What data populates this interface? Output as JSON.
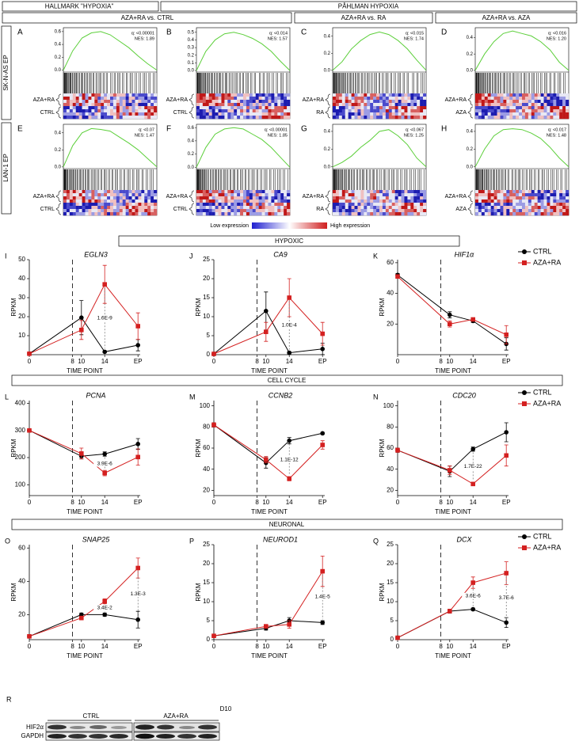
{
  "header": {
    "hallmark": "HALLMARK \"HYPOXIA\"",
    "pahlman": "PÅHLMAN HYPOXIA",
    "comparisons": [
      "AZA+RA vs. CTRL",
      "AZA+RA vs. RA",
      "AZA+RA vs. AZA"
    ],
    "rows": [
      "SK-N-AS EP",
      "LAN-1 EP"
    ]
  },
  "colorbar": {
    "low": "Low expression",
    "high": "High expression"
  },
  "sections": [
    "HYPOXIC",
    "CELL CYCLE",
    "NEURONAL"
  ],
  "chart_data": [
    {
      "type": "gsea",
      "label": "A",
      "ylim": [
        -0.03,
        0.66
      ],
      "yticks": [
        {
          "value": 0,
          "label": "0.0"
        },
        0.2,
        0.4,
        0.6
      ],
      "q": "q: <0.00001",
      "nes": "NES: 1.89",
      "groups": [
        "AZA+RA",
        "CTRL"
      ],
      "values": [
        0,
        0.3,
        0.5,
        0.58,
        0.6,
        0.55,
        0.45,
        0.35,
        0.22,
        0.1,
        0
      ]
    },
    {
      "type": "gsea",
      "label": "B",
      "ylim": [
        -0.02,
        0.56
      ],
      "yticks": [
        {
          "value": 0,
          "label": "0.0"
        },
        0.1,
        0.2,
        0.3,
        0.4,
        0.5
      ],
      "q": "q: <0.014",
      "nes": "NES: 1.57",
      "groups": [
        "AZA+RA",
        "CTRL"
      ],
      "values": [
        0,
        0.25,
        0.4,
        0.48,
        0.5,
        0.47,
        0.42,
        0.35,
        0.25,
        0.12,
        0
      ]
    },
    {
      "type": "gsea",
      "label": "C",
      "ylim": [
        -0.02,
        0.5
      ],
      "yticks": [
        {
          "value": 0,
          "label": "0.0"
        },
        0.2,
        0.4
      ],
      "q": "q: <0.015",
      "nes": "NES: 1.74",
      "groups": [
        "AZA+RA",
        "RA"
      ],
      "values": [
        0,
        0.1,
        0.25,
        0.35,
        0.42,
        0.45,
        0.42,
        0.35,
        0.25,
        0.12,
        0
      ]
    },
    {
      "type": "gsea",
      "label": "D",
      "ylim": [
        -0.02,
        0.52
      ],
      "yticks": [
        {
          "value": 0,
          "label": "0.0"
        },
        0.2,
        0.4
      ],
      "q": "q: <0.016",
      "nes": "NES: 1.20",
      "groups": [
        "AZA+RA",
        "AZA"
      ],
      "values": [
        0,
        0.2,
        0.35,
        0.45,
        0.48,
        0.45,
        0.42,
        0.35,
        0.25,
        0.1,
        0
      ]
    },
    {
      "type": "gsea",
      "label": "E",
      "ylim": [
        -0.02,
        0.5
      ],
      "yticks": [
        {
          "value": 0,
          "label": "0.0"
        },
        0.2,
        0.4
      ],
      "q": "q: <0.07",
      "nes": "NES: 1.47",
      "groups": [
        "AZA+RA",
        "CTRL"
      ],
      "values": [
        0,
        0.25,
        0.4,
        0.45,
        0.44,
        0.42,
        0.35,
        0.28,
        0.2,
        0.1,
        0
      ]
    },
    {
      "type": "gsea",
      "label": "F",
      "ylim": [
        -0.02,
        0.65
      ],
      "yticks": [
        {
          "value": 0,
          "label": "0.0"
        },
        0.2,
        0.4,
        0.6
      ],
      "q": "q: <0.00001",
      "nes": "NES: 1.85",
      "groups": [
        "AZA+RA",
        "CTRL"
      ],
      "values": [
        0,
        0.3,
        0.5,
        0.58,
        0.6,
        0.58,
        0.5,
        0.42,
        0.3,
        0.15,
        0
      ]
    },
    {
      "type": "gsea",
      "label": "G",
      "ylim": [
        -0.02,
        0.48
      ],
      "yticks": [
        {
          "value": 0,
          "label": "0.0"
        },
        0.2,
        0.4
      ],
      "q": "q: <0.067",
      "nes": "NES: 1.25",
      "groups": [
        "AZA+RA",
        "RA"
      ],
      "values": [
        0,
        0.05,
        0.12,
        0.22,
        0.3,
        0.4,
        0.42,
        0.35,
        0.25,
        0.1,
        0
      ]
    },
    {
      "type": "gsea",
      "label": "H",
      "ylim": [
        -0.02,
        0.48
      ],
      "yticks": [
        {
          "value": 0,
          "label": "0.0"
        },
        0.2,
        0.4
      ],
      "q": "q: <0.017",
      "nes": "NES: 1.48",
      "groups": [
        "AZA+RA",
        "AZA"
      ],
      "values": [
        0,
        0.2,
        0.35,
        0.42,
        0.43,
        0.42,
        0.38,
        0.32,
        0.22,
        0.1,
        0
      ]
    },
    {
      "type": "line",
      "label": "I",
      "title": "EGLN3",
      "y_label": "RPKM",
      "x_label": "TIME POINT",
      "x": [
        "0",
        "10",
        "14",
        "EP"
      ],
      "xticks": [
        "0",
        "8",
        "10",
        "14",
        "EP"
      ],
      "vline": "8",
      "ylim": [
        0,
        50
      ],
      "yticks": [
        10,
        20,
        30,
        40,
        50
      ],
      "series": [
        {
          "name": "CTRL",
          "color": "#000000",
          "marker": "circle",
          "values": [
            0.5,
            19.5,
            1.5,
            5
          ],
          "errors": [
            0,
            9,
            0.5,
            3
          ]
        },
        {
          "name": "AZA+RA",
          "color": "#d42020",
          "marker": "square",
          "values": [
            0.5,
            13,
            37,
            15
          ],
          "errors": [
            0,
            5,
            10,
            7
          ]
        }
      ],
      "annotations": [
        {
          "text": "1.6E-9",
          "at": "14"
        }
      ]
    },
    {
      "type": "line",
      "label": "J",
      "title": "CA9",
      "y_label": "RPKM",
      "x_label": "TIME POINT",
      "x": [
        "0",
        "10",
        "14",
        "EP"
      ],
      "xticks": [
        "0",
        "8",
        "10",
        "14",
        "EP"
      ],
      "vline": "8",
      "ylim": [
        0,
        25
      ],
      "yticks": [
        0,
        5,
        10,
        15,
        20,
        25
      ],
      "series": [
        {
          "name": "CTRL",
          "color": "#000000",
          "marker": "circle",
          "values": [
            0.2,
            11.5,
            0.5,
            1.5
          ],
          "errors": [
            0,
            5,
            0.3,
            1.5
          ]
        },
        {
          "name": "AZA+RA",
          "color": "#d42020",
          "marker": "square",
          "values": [
            0.2,
            6,
            15,
            5.5
          ],
          "errors": [
            0,
            2.5,
            5,
            3
          ]
        }
      ],
      "annotations": [
        {
          "text": "1.0E-4",
          "at": "14"
        }
      ]
    },
    {
      "type": "line",
      "label": "K",
      "title": "HIF1α",
      "y_label": "RPKM",
      "x_label": "TIME POINT",
      "x": [
        "0",
        "10",
        "14",
        "EP"
      ],
      "xticks": [
        "0",
        "8",
        "10",
        "14",
        "EP"
      ],
      "vline": "8",
      "ylim": [
        0,
        62
      ],
      "yticks": [
        20,
        40,
        60
      ],
      "legend": "right",
      "series": [
        {
          "name": "CTRL",
          "color": "#000000",
          "marker": "circle",
          "values": [
            52,
            26,
            22,
            7
          ],
          "errors": [
            1,
            2,
            1,
            4
          ]
        },
        {
          "name": "AZA+RA",
          "color": "#d42020",
          "marker": "square",
          "values": [
            51,
            20,
            23,
            13
          ],
          "errors": [
            1,
            2,
            1,
            6
          ]
        }
      ],
      "annotations": []
    },
    {
      "type": "line",
      "label": "L",
      "title": "PCNA",
      "y_label": "RPKM",
      "x_label": "TIME POINT",
      "x": [
        "0",
        "10",
        "14",
        "EP"
      ],
      "xticks": [
        "0",
        "8",
        "10",
        "14",
        "EP"
      ],
      "vline": "8",
      "ylim": [
        60,
        410
      ],
      "yticks": [
        100,
        200,
        300,
        400
      ],
      "series": [
        {
          "name": "CTRL",
          "color": "#000000",
          "marker": "circle",
          "values": [
            300,
            205,
            213,
            250
          ],
          "errors": [
            5,
            10,
            8,
            20
          ]
        },
        {
          "name": "AZA+RA",
          "color": "#d42020",
          "marker": "square",
          "values": [
            300,
            215,
            143,
            202
          ],
          "errors": [
            5,
            20,
            10,
            30
          ]
        }
      ],
      "annotations": [
        {
          "text": "3.9E-6",
          "at": "14"
        }
      ]
    },
    {
      "type": "line",
      "label": "M",
      "title": "CCNB2",
      "y_label": "RPKM",
      "x_label": "TIME POINT",
      "x": [
        "0",
        "10",
        "14",
        "EP"
      ],
      "xticks": [
        "0",
        "8",
        "10",
        "14",
        "EP"
      ],
      "vline": "8",
      "ylim": [
        15,
        105
      ],
      "yticks": [
        20,
        40,
        60,
        80,
        100
      ],
      "series": [
        {
          "name": "CTRL",
          "color": "#000000",
          "marker": "circle",
          "values": [
            82,
            46,
            67,
            74
          ],
          "errors": [
            2,
            5,
            3,
            1
          ]
        },
        {
          "name": "AZA+RA",
          "color": "#d42020",
          "marker": "square",
          "values": [
            82,
            49,
            31,
            63
          ],
          "errors": [
            2,
            3,
            2,
            4
          ]
        }
      ],
      "annotations": [
        {
          "text": "1.1E-12",
          "at": "14"
        }
      ]
    },
    {
      "type": "line",
      "label": "N",
      "title": "CDC20",
      "y_label": "RPKM",
      "x_label": "TIME POINT",
      "x": [
        "0",
        "10",
        "14",
        "EP"
      ],
      "xticks": [
        "0",
        "8",
        "10",
        "14",
        "EP"
      ],
      "vline": "8",
      "ylim": [
        15,
        105
      ],
      "yticks": [
        20,
        40,
        60,
        80,
        100
      ],
      "legend": "right",
      "series": [
        {
          "name": "CTRL",
          "color": "#000000",
          "marker": "circle",
          "values": [
            58,
            38,
            59,
            75
          ],
          "errors": [
            2,
            5,
            2,
            9
          ]
        },
        {
          "name": "AZA+RA",
          "color": "#d42020",
          "marker": "square",
          "values": [
            58,
            39,
            26,
            53
          ],
          "errors": [
            2,
            4,
            1,
            10
          ]
        }
      ],
      "annotations": [
        {
          "text": "1.7E-22",
          "at": "14"
        }
      ]
    },
    {
      "type": "line",
      "label": "O",
      "title": "SNAP25",
      "y_label": "RPKM",
      "x_label": "TIME POINT",
      "x": [
        "0",
        "10",
        "14",
        "EP"
      ],
      "xticks": [
        "0",
        "8",
        "10",
        "14",
        "EP"
      ],
      "vline": "8",
      "ylim": [
        5,
        62
      ],
      "yticks": [
        20,
        40,
        60
      ],
      "series": [
        {
          "name": "CTRL",
          "color": "#000000",
          "marker": "circle",
          "values": [
            7,
            20,
            20,
            17
          ],
          "errors": [
            0.5,
            1,
            1,
            5
          ]
        },
        {
          "name": "AZA+RA",
          "color": "#d42020",
          "marker": "square",
          "values": [
            7,
            18,
            28,
            48
          ],
          "errors": [
            0.5,
            1,
            1.5,
            6
          ]
        }
      ],
      "annotations": [
        {
          "text": "3.4E-2",
          "at": "14"
        },
        {
          "text": "1.3E-3",
          "at": "EP"
        }
      ]
    },
    {
      "type": "line",
      "label": "P",
      "title": "NEUROD1",
      "y_label": "RPKM",
      "x_label": "TIME POINT",
      "x": [
        "0",
        "10",
        "14",
        "EP"
      ],
      "xticks": [
        "0",
        "8",
        "10",
        "14",
        "EP"
      ],
      "vline": "8",
      "ylim": [
        0,
        25
      ],
      "yticks": [
        0,
        5,
        10,
        15,
        20,
        25
      ],
      "series": [
        {
          "name": "CTRL",
          "color": "#000000",
          "marker": "circle",
          "values": [
            1,
            3,
            5,
            4.5
          ],
          "errors": [
            0.2,
            0.5,
            0.8,
            0.5
          ]
        },
        {
          "name": "AZA+RA",
          "color": "#d42020",
          "marker": "square",
          "values": [
            1,
            3.5,
            4,
            18
          ],
          "errors": [
            0.2,
            0.5,
            1,
            4
          ]
        }
      ],
      "annotations": [
        {
          "text": "1.4E-5",
          "at": "EP"
        }
      ]
    },
    {
      "type": "line",
      "label": "Q",
      "title": "DCX",
      "y_label": "RPKM",
      "x_label": "TIME POINT",
      "x": [
        "0",
        "10",
        "14",
        "EP"
      ],
      "xticks": [
        "0",
        "8",
        "10",
        "14",
        "EP"
      ],
      "vline": "8",
      "ylim": [
        0,
        25
      ],
      "yticks": [
        0,
        5,
        10,
        15,
        20,
        25
      ],
      "legend": "right",
      "series": [
        {
          "name": "CTRL",
          "color": "#000000",
          "marker": "circle",
          "values": [
            0.5,
            7.5,
            8,
            4.5
          ],
          "errors": [
            0,
            0.5,
            0.3,
            1.3
          ]
        },
        {
          "name": "AZA+RA",
          "color": "#d42020",
          "marker": "square",
          "values": [
            0.5,
            7.5,
            15,
            17.5
          ],
          "errors": [
            0,
            0.5,
            1.5,
            3
          ]
        }
      ],
      "annotations": [
        {
          "text": "3.6E-6",
          "at": "14"
        },
        {
          "text": "3.7E-6",
          "at": "EP"
        }
      ]
    }
  ],
  "blot": {
    "label": "R",
    "day": "D10",
    "groups": [
      "CTRL",
      "AZA+RA"
    ],
    "rows": [
      "HIF2α",
      "GAPDH"
    ]
  }
}
